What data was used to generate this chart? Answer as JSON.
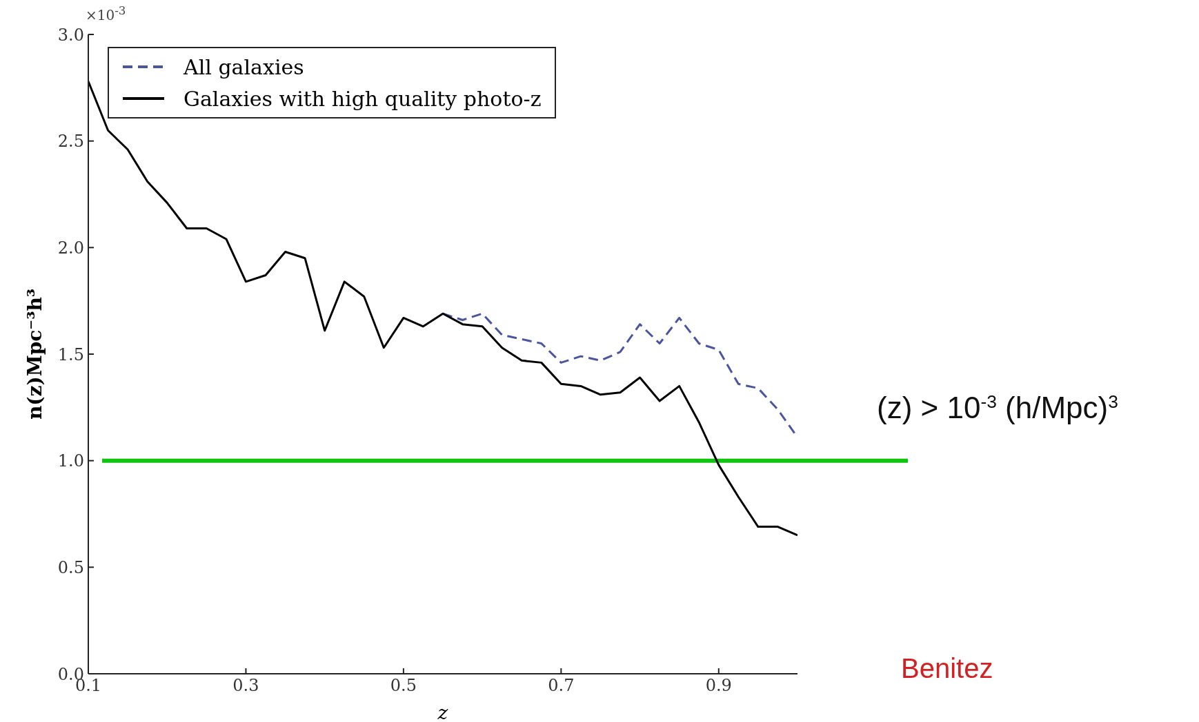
{
  "chart_data": {
    "type": "line",
    "x": [
      0.1,
      0.125,
      0.15,
      0.175,
      0.2,
      0.225,
      0.25,
      0.275,
      0.3,
      0.325,
      0.35,
      0.375,
      0.4,
      0.425,
      0.45,
      0.475,
      0.5,
      0.525,
      0.55,
      0.575,
      0.6,
      0.625,
      0.65,
      0.675,
      0.7,
      0.725,
      0.75,
      0.775,
      0.8,
      0.825,
      0.85,
      0.875,
      0.9,
      0.925,
      0.95,
      0.975,
      1.0
    ],
    "series": [
      {
        "name": "All galaxies",
        "color": "#4a55a2",
        "line_style": "dashed",
        "values": [
          null,
          null,
          null,
          null,
          null,
          null,
          null,
          null,
          null,
          null,
          null,
          null,
          null,
          null,
          null,
          null,
          null,
          null,
          1.69,
          1.66,
          1.69,
          1.59,
          1.57,
          1.55,
          1.46,
          1.49,
          1.47,
          1.51,
          1.64,
          1.55,
          1.67,
          1.55,
          1.52,
          1.36,
          1.34,
          1.24,
          1.11
        ]
      },
      {
        "name": "Galaxies with high quality photo-z",
        "color": "#000000",
        "line_style": "solid",
        "values": [
          2.78,
          2.55,
          2.46,
          2.31,
          2.21,
          2.09,
          2.09,
          2.04,
          1.84,
          1.87,
          1.98,
          1.95,
          1.61,
          1.84,
          1.77,
          1.53,
          1.67,
          1.63,
          1.69,
          1.64,
          1.63,
          1.53,
          1.47,
          1.46,
          1.36,
          1.35,
          1.31,
          1.32,
          1.39,
          1.28,
          1.35,
          1.18,
          0.98,
          0.83,
          0.69,
          0.69,
          0.65
        ]
      }
    ],
    "xlabel": "z",
    "ylabel": "n(z)Mpc⁻³h³",
    "xlim": [
      0.1,
      1.0
    ],
    "xticks": [
      0.1,
      0.3,
      0.5,
      0.7,
      0.9
    ],
    "ylim": [
      0,
      3.0
    ],
    "yticks": [
      {
        "value": 0,
        "label": "0.0"
      },
      {
        "value": 0.5,
        "label": "0.5"
      },
      {
        "value": 1,
        "label": "1.0"
      },
      {
        "value": 1.5,
        "label": "1.5"
      },
      {
        "value": 2,
        "label": "2.0"
      },
      {
        "value": 2.5,
        "label": "2.5"
      },
      {
        "value": 3,
        "label": "3.0"
      }
    ],
    "ref_lines": [
      {
        "axis": "y",
        "value": 1.0,
        "label": "(z) > 10$^{-3}$ (h/Mpc)$^{3}$",
        "color": "#11c411"
      }
    ],
    "annotations": [
      "×10$^{-3}$",
      "Benitez"
    ],
    "legend": "top left",
    "grid": false,
    "marker": "none"
  }
}
